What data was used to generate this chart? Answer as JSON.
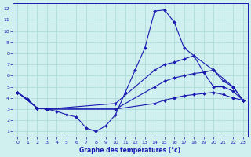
{
  "bg_color": "#d0efef",
  "line_color": "#1a1ab0",
  "grid_color": "#a8d8d8",
  "xlabel": "Graphe des températures (°c)",
  "xlim": [
    -0.5,
    23.5
  ],
  "ylim": [
    0.5,
    12.5
  ],
  "xticks": [
    0,
    1,
    2,
    3,
    4,
    5,
    6,
    7,
    8,
    9,
    10,
    11,
    12,
    13,
    14,
    15,
    16,
    17,
    18,
    19,
    20,
    21,
    22,
    23
  ],
  "yticks": [
    1,
    2,
    3,
    4,
    5,
    6,
    7,
    8,
    9,
    10,
    11,
    12
  ],
  "series": [
    {
      "x": [
        0,
        1,
        2,
        3,
        4,
        5,
        6,
        7,
        8,
        9,
        10,
        11,
        12,
        13,
        14,
        15,
        16,
        17,
        18,
        19,
        20,
        21,
        22,
        23
      ],
      "y": [
        4.5,
        3.9,
        3.1,
        3.0,
        2.8,
        2.5,
        2.3,
        1.3,
        1.0,
        1.5,
        2.5,
        4.5,
        6.5,
        8.5,
        11.8,
        11.9,
        10.8,
        8.5,
        7.8,
        6.3,
        5.0,
        5.0,
        4.6,
        3.8
      ]
    },
    {
      "x": [
        0,
        2,
        3,
        10,
        14,
        15,
        16,
        17,
        18,
        20,
        22,
        23
      ],
      "y": [
        4.5,
        3.1,
        3.0,
        3.5,
        6.5,
        7.0,
        7.2,
        7.5,
        7.8,
        6.5,
        5.0,
        3.8
      ]
    },
    {
      "x": [
        0,
        2,
        3,
        10,
        14,
        15,
        16,
        17,
        18,
        19,
        20,
        21,
        22,
        23
      ],
      "y": [
        4.5,
        3.1,
        3.0,
        3.0,
        5.0,
        5.5,
        5.8,
        6.0,
        6.2,
        6.3,
        6.5,
        5.5,
        5.0,
        3.8
      ]
    },
    {
      "x": [
        0,
        2,
        3,
        10,
        14,
        15,
        16,
        17,
        18,
        19,
        20,
        21,
        22,
        23
      ],
      "y": [
        4.5,
        3.1,
        3.0,
        3.0,
        3.5,
        3.8,
        4.0,
        4.2,
        4.3,
        4.4,
        4.5,
        4.3,
        4.0,
        3.8
      ]
    }
  ]
}
